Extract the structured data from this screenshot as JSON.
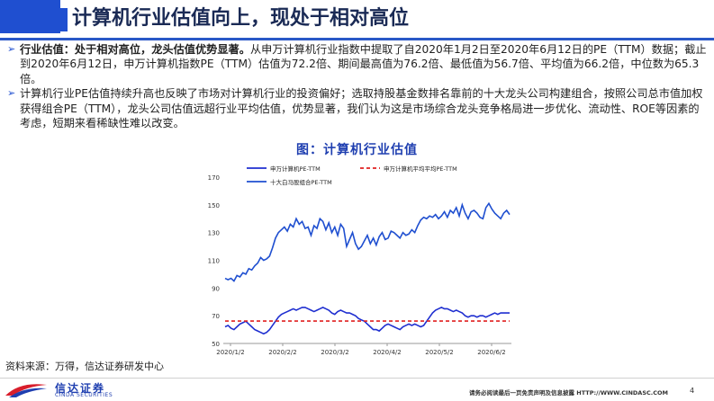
{
  "title": "计算机行业估值向上，现处于相对高位",
  "bullets": [
    {
      "strong": "行业估值：处于相对高位，龙头估值优势显著。",
      "text": "从申万计算机行业指数中提取了自2020年1月2日至2020年6月12日的PE（TTM）数据；截止到2020年6月12日，申万计算机指数PE（TTM）估值为72.2倍、期间最高值为76.2倍、最低值为56.7倍、平均值为66.2倍，中位数为65.3倍。"
    },
    {
      "strong": "",
      "text": "计算机行业PE估值持续升高也反映了市场对计算机行业的投资偏好；选取持股基金数排名靠前的十大龙头公司构建组合，按照公司总市值加权获得组合PE（TTM），龙头公司估值远超行业平均估值，优势显著，我们认为这是市场综合龙头竞争格局进一步优化、流动性、ROE等因素的考虑，短期来看稀缺性难以改变。"
    }
  ],
  "figure_title": "图：计算机行业估值",
  "source": "资料来源：万得，信达证券研发中心",
  "footer": {
    "logo_cn": "信达证券",
    "logo_en": "CINDA SECURITIES",
    "disclaimer": "请务必阅读最后一页免责声明及信息披露  HTTP://WWW.CINDASC.COM",
    "page": "4"
  },
  "colors": {
    "accent": "#1f4fd0",
    "series_blue": "#1f2fd0",
    "avg_red": "#e02020"
  },
  "chart_data": {
    "type": "line",
    "legend": [
      "申万计算机PE-TTM",
      "申万计算机平均平均PE-TTM",
      "十大白马股组合PE-TTM"
    ],
    "x_ticks": [
      "2020/1/2",
      "2020/2/2",
      "2020/3/2",
      "2020/4/2",
      "2020/5/2",
      "2020/6/2"
    ],
    "ylim": [
      50,
      170
    ],
    "y_ticks": [
      50,
      70,
      90,
      110,
      130,
      150,
      170
    ],
    "series": [
      {
        "name": "申万计算机PE-TTM",
        "values": [
          62,
          63,
          61,
          60,
          62,
          64,
          65,
          66,
          64,
          62,
          60,
          59,
          58,
          57,
          58,
          60,
          63,
          66,
          69,
          71,
          72,
          73,
          74,
          75,
          74,
          75,
          76,
          76,
          75,
          74,
          73,
          74,
          75,
          76,
          75,
          74,
          72,
          71,
          73,
          74,
          73,
          72,
          72,
          71,
          70,
          68,
          67,
          66,
          64,
          62,
          60,
          60,
          59,
          61,
          63,
          64,
          63,
          62,
          61,
          60,
          62,
          63,
          64,
          63,
          64,
          63,
          62,
          63,
          66,
          69,
          72,
          74,
          75,
          76,
          75,
          75,
          74,
          73,
          74,
          73,
          72,
          70,
          69,
          70,
          70,
          69,
          70,
          70,
          69,
          70,
          71,
          72,
          71,
          72,
          72,
          72,
          72
        ]
      },
      {
        "name": "申万计算机平均平均PE-TTM",
        "values": [
          66.2,
          66.2
        ]
      },
      {
        "name": "十大白马股组合PE-TTM",
        "values": [
          97,
          96,
          97,
          95,
          99,
          98,
          101,
          100,
          104,
          103,
          106,
          108,
          112,
          110,
          111,
          113,
          119,
          126,
          130,
          132,
          134,
          131,
          136,
          134,
          140,
          136,
          138,
          133,
          134,
          128,
          135,
          133,
          140,
          138,
          132,
          137,
          130,
          134,
          128,
          136,
          133,
          120,
          125,
          130,
          122,
          118,
          120,
          124,
          128,
          122,
          126,
          121,
          127,
          130,
          125,
          126,
          131,
          130,
          128,
          126,
          130,
          128,
          129,
          132,
          130,
          135,
          139,
          141,
          140,
          142,
          141,
          143,
          140,
          142,
          145,
          141,
          146,
          144,
          148,
          142,
          150,
          144,
          140,
          145,
          146,
          144,
          141,
          140,
          148,
          151,
          147,
          144,
          142,
          140,
          144,
          146,
          143
        ]
      }
    ]
  }
}
